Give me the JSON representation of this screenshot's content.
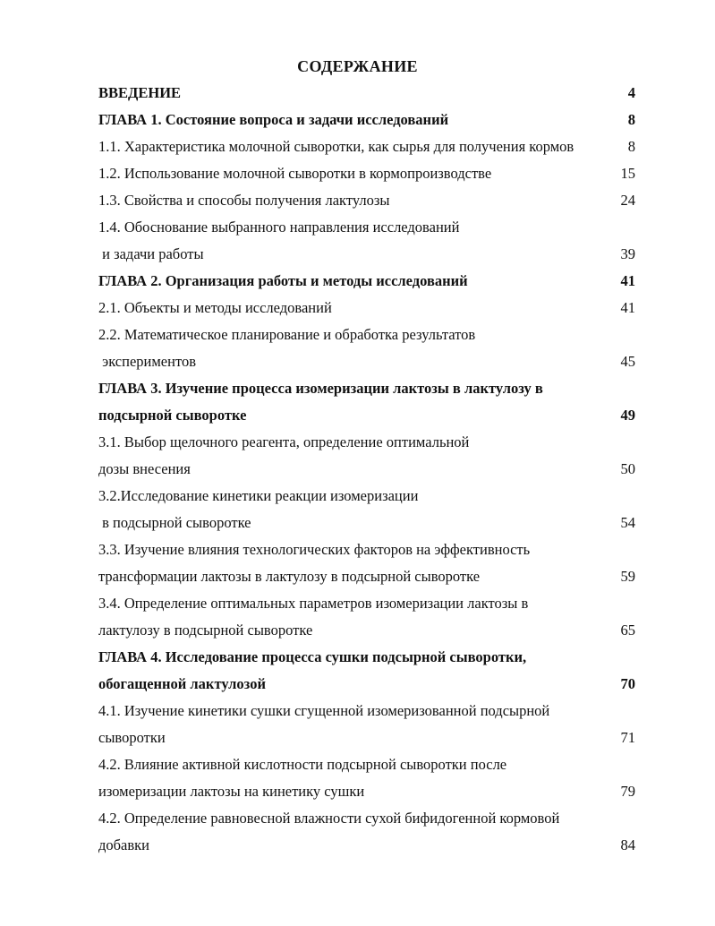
{
  "title": "СОДЕРЖАНИЕ",
  "lines": [
    {
      "text": "ВВЕДЕНИЕ",
      "page": "4",
      "level": "chapter"
    },
    {
      "text": "ГЛАВА 1. Состояние вопроса и задачи исследований",
      "page": "8",
      "level": "chapter"
    },
    {
      "text": "1.1. Характеристика молочной сыворотки, как сырья для получения кормов",
      "page": "8",
      "level": "section"
    },
    {
      "text": "1.2. Использование молочной сыворотки в кормопроизводстве",
      "page": "15",
      "level": "section"
    },
    {
      "text": "1.3. Свойства и способы получения лактулозы",
      "page": "24",
      "level": "section"
    },
    {
      "text": "1.4. Обоснование выбранного направления исследований",
      "page": "",
      "level": "section"
    },
    {
      "text": " и задачи работы",
      "page": "39",
      "level": "section"
    },
    {
      "text": "ГЛАВА 2. Организация работы и методы исследований",
      "page": "41",
      "level": "chapter"
    },
    {
      "text": "2.1. Объекты и методы исследований",
      "page": "41",
      "level": "section"
    },
    {
      "text": "2.2. Математическое планирование и обработка результатов",
      "page": "",
      "level": "section"
    },
    {
      "text": " экспериментов",
      "page": "45",
      "level": "section"
    },
    {
      "text": "ГЛАВА 3. Изучение процесса изомеризации лактозы в лактулозу в",
      "page": "",
      "level": "chapter"
    },
    {
      "text": "подсырной сыворотке",
      "page": "49",
      "level": "chapter"
    },
    {
      "text": "3.1. Выбор щелочного реагента, определение оптимальной",
      "page": "",
      "level": "section"
    },
    {
      "text": "дозы внесения",
      "page": "50",
      "level": "section"
    },
    {
      "text": "3.2.Исследование кинетики реакции изомеризации",
      "page": "",
      "level": "section"
    },
    {
      "text": " в подсырной сыворотке",
      "page": "54",
      "level": "section"
    },
    {
      "text": "3.3. Изучение влияния технологических факторов на эффективность",
      "page": "",
      "level": "section"
    },
    {
      "text": "трансформации лактозы в лактулозу в подсырной сыворотке",
      "page": "59",
      "level": "section"
    },
    {
      "text": "3.4. Определение оптимальных параметров изомеризации лактозы в",
      "page": "",
      "level": "section"
    },
    {
      "text": "лактулозу в подсырной сыворотке",
      "page": "65",
      "level": "section"
    },
    {
      "text": "ГЛАВА 4. Исследование процесса сушки подсырной сыворотки,",
      "page": "",
      "level": "chapter"
    },
    {
      "text": "обогащенной лактулозой",
      "page": "70",
      "level": "chapter"
    },
    {
      "text": "4.1. Изучение кинетики сушки сгущенной изомеризованной подсырной",
      "page": "",
      "level": "section"
    },
    {
      "text": "сыворотки",
      "page": "71",
      "level": "section"
    },
    {
      "text": "4.2. Влияние активной кислотности подсырной сыворотки после",
      "page": "",
      "level": "section"
    },
    {
      "text": "изомеризации лактозы на кинетику сушки",
      "page": "79",
      "level": "section"
    },
    {
      "text": "4.2. Определение равновесной влажности сухой бифидогенной кормовой",
      "page": "",
      "level": "section"
    },
    {
      "text": "добавки",
      "page": "84",
      "level": "section"
    }
  ]
}
